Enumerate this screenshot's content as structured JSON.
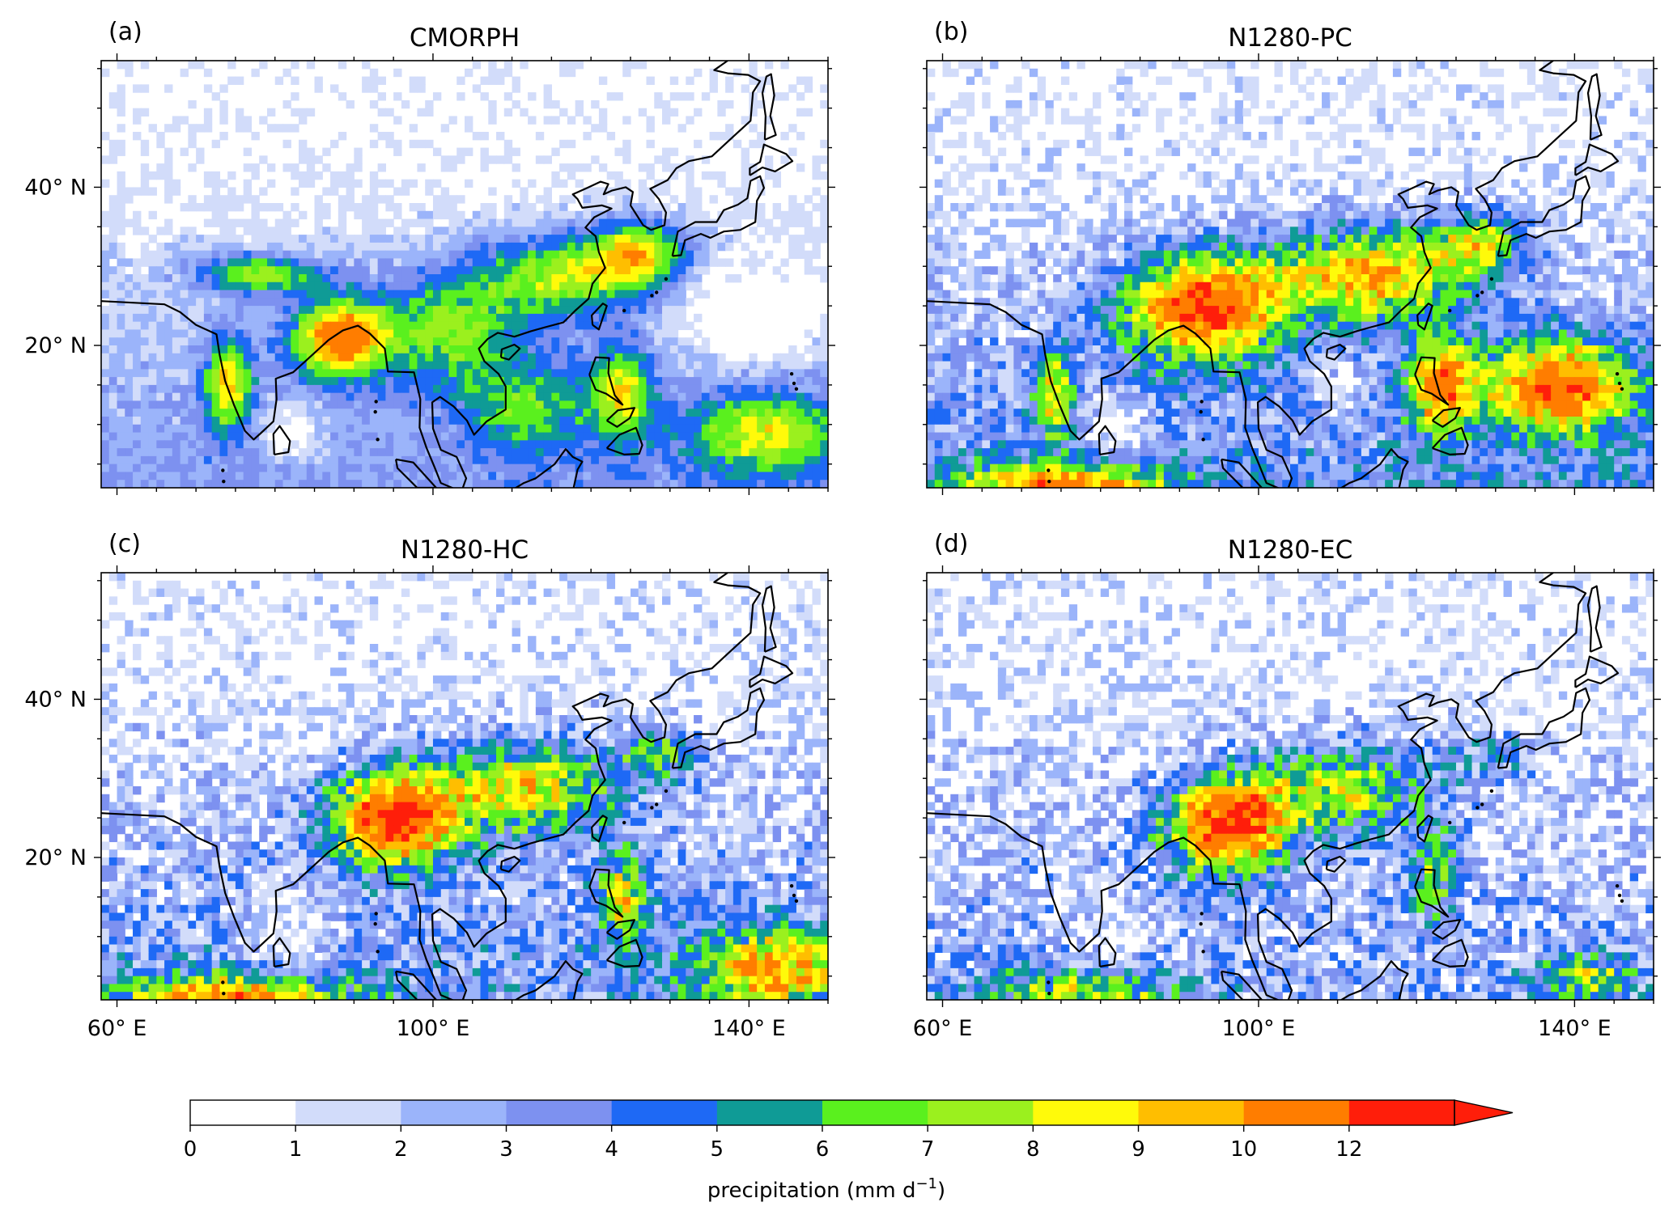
{
  "panels": [
    {
      "id": "a",
      "label": "(a)",
      "title": "CMORPH",
      "show_y_labels": true,
      "show_x_labels": false
    },
    {
      "id": "b",
      "label": "(b)",
      "title": "N1280-PC",
      "show_y_labels": false,
      "show_x_labels": false
    },
    {
      "id": "c",
      "label": "(c)",
      "title": "N1280-HC",
      "show_y_labels": true,
      "show_x_labels": true
    },
    {
      "id": "d",
      "label": "(d)",
      "title": "N1280-EC",
      "show_y_labels": false,
      "show_x_labels": true
    }
  ],
  "axes": {
    "lon_range": [
      58,
      150
    ],
    "lat_range": [
      2,
      56
    ],
    "x_ticks": [
      {
        "value": 60,
        "label": "60° E"
      },
      {
        "value": 100,
        "label": "100° E"
      },
      {
        "value": 140,
        "label": "140° E"
      }
    ],
    "y_ticks": [
      {
        "value": 20,
        "label": "20° N"
      },
      {
        "value": 40,
        "label": "40° N"
      }
    ]
  },
  "colorbar": {
    "label": "precipitation (mm d",
    "label_sup": "−1",
    "label_end": ")",
    "extend": "max",
    "tick_labels": [
      "0",
      "1",
      "2",
      "3",
      "4",
      "5",
      "6",
      "7",
      "8",
      "9",
      "10",
      "12"
    ],
    "colors": [
      "#ffffff",
      "#d2dcfa",
      "#9bb4fa",
      "#7d91f0",
      "#1e69f5",
      "#0f9b96",
      "#5af01e",
      "#9bf01e",
      "#fffa0a",
      "#ffbe00",
      "#ff7d00",
      "#ff1e0a",
      "#ff1e0a"
    ]
  }
}
